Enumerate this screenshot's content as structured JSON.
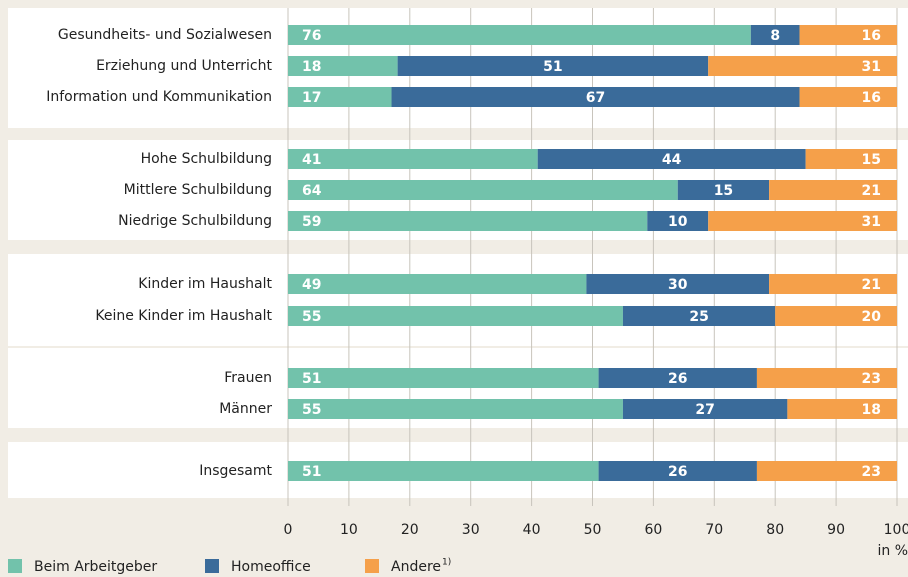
{
  "chart_data": {
    "type": "stacked_bar_horizontal",
    "categories": [
      "Gesundheits- und Sozialwesen",
      "Erziehung und Unterricht",
      "Information und Kommunikation",
      "Hohe Schulbildung",
      "Mittlere Schulbildung",
      "Niedrige Schulbildung",
      "Kinder im Haushalt",
      "Keine Kinder im Haushalt",
      "Frauen",
      "Männer",
      "Insgesamt"
    ],
    "series": [
      {
        "name": "Beim Arbeitgeber",
        "color": "#72c2ab",
        "values": [
          76,
          18,
          17,
          41,
          64,
          59,
          49,
          55,
          51,
          55,
          51
        ]
      },
      {
        "name": "Homeoffice",
        "color": "#3a6b9a",
        "values": [
          8,
          51,
          67,
          44,
          15,
          10,
          30,
          25,
          26,
          27,
          26
        ]
      },
      {
        "name": "Andere",
        "color": "#f5a04a",
        "values": [
          16,
          31,
          16,
          15,
          21,
          31,
          21,
          20,
          23,
          18,
          23
        ]
      }
    ],
    "legend_footnote": "1)",
    "xlabel": "in %",
    "xlim": [
      0,
      100
    ],
    "xticks": [
      0,
      10,
      20,
      30,
      40,
      50,
      60,
      70,
      80,
      90,
      100
    ],
    "grid": true
  }
}
